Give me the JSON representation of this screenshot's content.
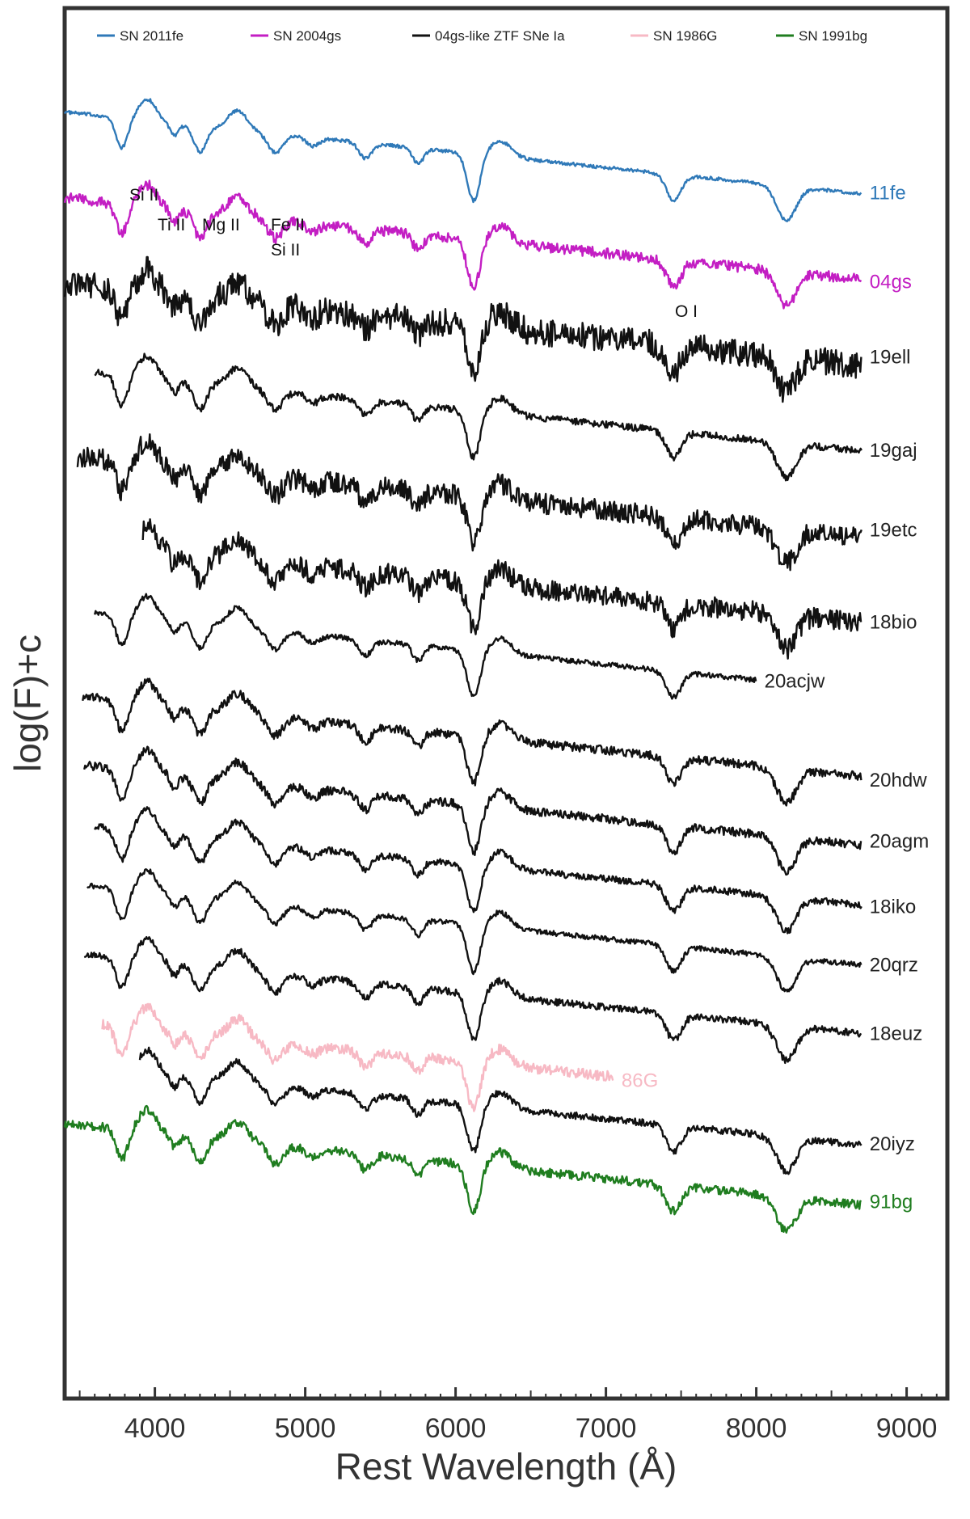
{
  "chart_data": {
    "type": "line",
    "xlabel": "Rest Wavelength (Å)",
    "ylabel": "log(F)+c",
    "xlim": [
      3400,
      9200
    ],
    "xticks": [
      4000,
      5000,
      6000,
      7000,
      8000,
      9000
    ],
    "tick_labels": [
      "4000",
      "5000",
      "6000",
      "7000",
      "8000",
      "9000"
    ],
    "y_tick_labels": "none",
    "grid": false,
    "legend_position": "top",
    "legend": [
      {
        "name": "SN 2011fe",
        "color": "#2f79b8"
      },
      {
        "name": "SN 2004gs",
        "color": "#c31ec3"
      },
      {
        "name": "04gs-like ZTF SNe Ia",
        "color": "#111111"
      },
      {
        "name": "SN 1986G",
        "color": "#f7b9c4"
      },
      {
        "name": "SN 1991bg",
        "color": "#1f7d1f"
      }
    ],
    "line_labels": [
      "Si II",
      "Ti II",
      "Mg II",
      "Fe II",
      "Si II",
      "O I"
    ],
    "series": [
      {
        "label": "11fe",
        "color": "#2f79b8",
        "x_range": [
          3400,
          8700
        ],
        "y": 10,
        "noise": 0.02
      },
      {
        "label": "04gs",
        "color": "#c31ec3",
        "x_range": [
          3400,
          8700
        ],
        "y": 9,
        "noise": 0.06
      },
      {
        "label": "19ell",
        "color": "#111111",
        "x_range": [
          3400,
          8700
        ],
        "y": 8,
        "noise": 0.16
      },
      {
        "label": "19gaj",
        "color": "#111111",
        "x_range": [
          3600,
          8700
        ],
        "y": 7,
        "noise": 0.04
      },
      {
        "label": "19etc",
        "color": "#111111",
        "x_range": [
          3480,
          8700
        ],
        "y": 6,
        "noise": 0.12
      },
      {
        "label": "18bio",
        "color": "#111111",
        "x_range": [
          3920,
          8700
        ],
        "y": 5,
        "noise": 0.12
      },
      {
        "label": "20acjw",
        "color": "#111111",
        "x_range": [
          3600,
          8000
        ],
        "y": 4.2,
        "noise": 0.03
      },
      {
        "label": "20hdw",
        "color": "#111111",
        "x_range": [
          3520,
          8700
        ],
        "y": 3.2,
        "noise": 0.05
      },
      {
        "label": "20agm",
        "color": "#111111",
        "x_range": [
          3530,
          8700
        ],
        "y": 2.4,
        "noise": 0.05
      },
      {
        "label": "18iko",
        "color": "#111111",
        "x_range": [
          3600,
          8700
        ],
        "y": 1.7,
        "noise": 0.04
      },
      {
        "label": "20qrz",
        "color": "#111111",
        "x_range": [
          3550,
          8700
        ],
        "y": 1,
        "noise": 0.03
      },
      {
        "label": "18euz",
        "color": "#111111",
        "x_range": [
          3530,
          8700
        ],
        "y": 0.2,
        "noise": 0.04
      },
      {
        "label": "86G",
        "color": "#f7b9c4",
        "x_range": [
          3650,
          7050
        ],
        "y": -0.6,
        "noise": 0.06
      },
      {
        "label": "20iyz",
        "color": "#111111",
        "x_range": [
          3900,
          8700
        ],
        "y": -1.1,
        "noise": 0.04
      },
      {
        "label": "91bg",
        "color": "#1f7d1f",
        "x_range": [
          3400,
          8700
        ],
        "y": -1.8,
        "noise": 0.05
      }
    ]
  }
}
